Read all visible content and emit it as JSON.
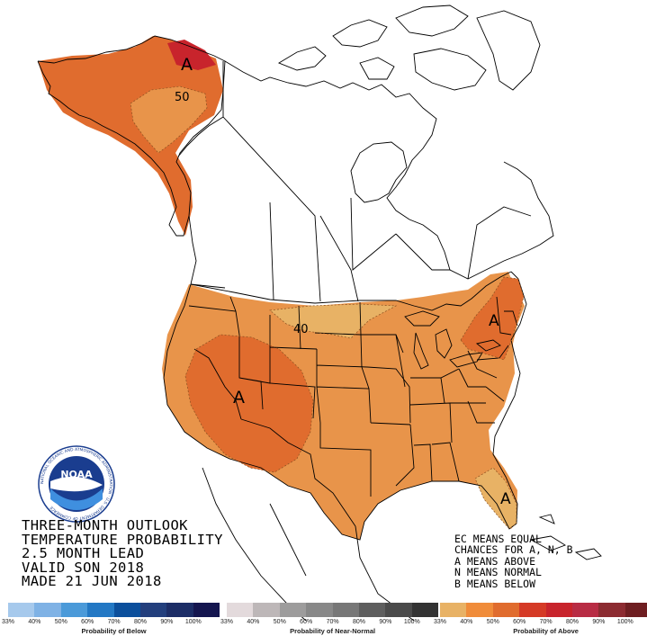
{
  "title_lines": [
    "THREE-MONTH OUTLOOK",
    "TEMPERATURE PROBABILITY",
    "2.5 MONTH LEAD",
    "VALID SON 2018",
    "MADE 21 JUN 2018"
  ],
  "legend_notes": [
    "EC MEANS EQUAL",
    "CHANCES FOR A, N, B",
    "A MEANS ABOVE",
    "N MEANS NORMAL",
    "B MEANS BELOW"
  ],
  "map_labels": {
    "alaska_center": "A",
    "alaska_contour": "50",
    "plains_contour": "40",
    "southwest_center": "A",
    "northeast_center": "A",
    "florida_center": "A"
  },
  "logo": {
    "text": "NOAA",
    "ring_text": "NATIONAL OCEANIC AND ATMOSPHERIC ADMINISTRATION · U.S. DEPARTMENT OF COMMERCE"
  },
  "scales": [
    {
      "title": "Probability of Below",
      "ticks": [
        "33%",
        "40%",
        "50%",
        "60%",
        "70%",
        "80%",
        "90%",
        "100%"
      ],
      "colors": [
        "#a6c9ec",
        "#7fb2e5",
        "#4b9ad9",
        "#2378c4",
        "#0b4f9c",
        "#233f7d",
        "#1c2d66",
        "#14164f"
      ]
    },
    {
      "title": "Probability of Near-Normal",
      "ticks": [
        "33%",
        "40%",
        "50%",
        "60%",
        "70%",
        "80%",
        "90%",
        "100%"
      ],
      "colors": [
        "#e3dadc",
        "#bdb7b8",
        "#9d9c9c",
        "#888888",
        "#777777",
        "#5e5e5e",
        "#4a4a4a",
        "#333333"
      ]
    },
    {
      "title": "Probability of Above",
      "ticks": [
        "33%",
        "40%",
        "50%",
        "60%",
        "70%",
        "80%",
        "90%",
        "100%"
      ],
      "colors": [
        "#e8b265",
        "#f08c3a",
        "#e06c2e",
        "#d53a26",
        "#c8242c",
        "#b82c44",
        "#8c2b31",
        "#6e1e21"
      ]
    }
  ]
}
